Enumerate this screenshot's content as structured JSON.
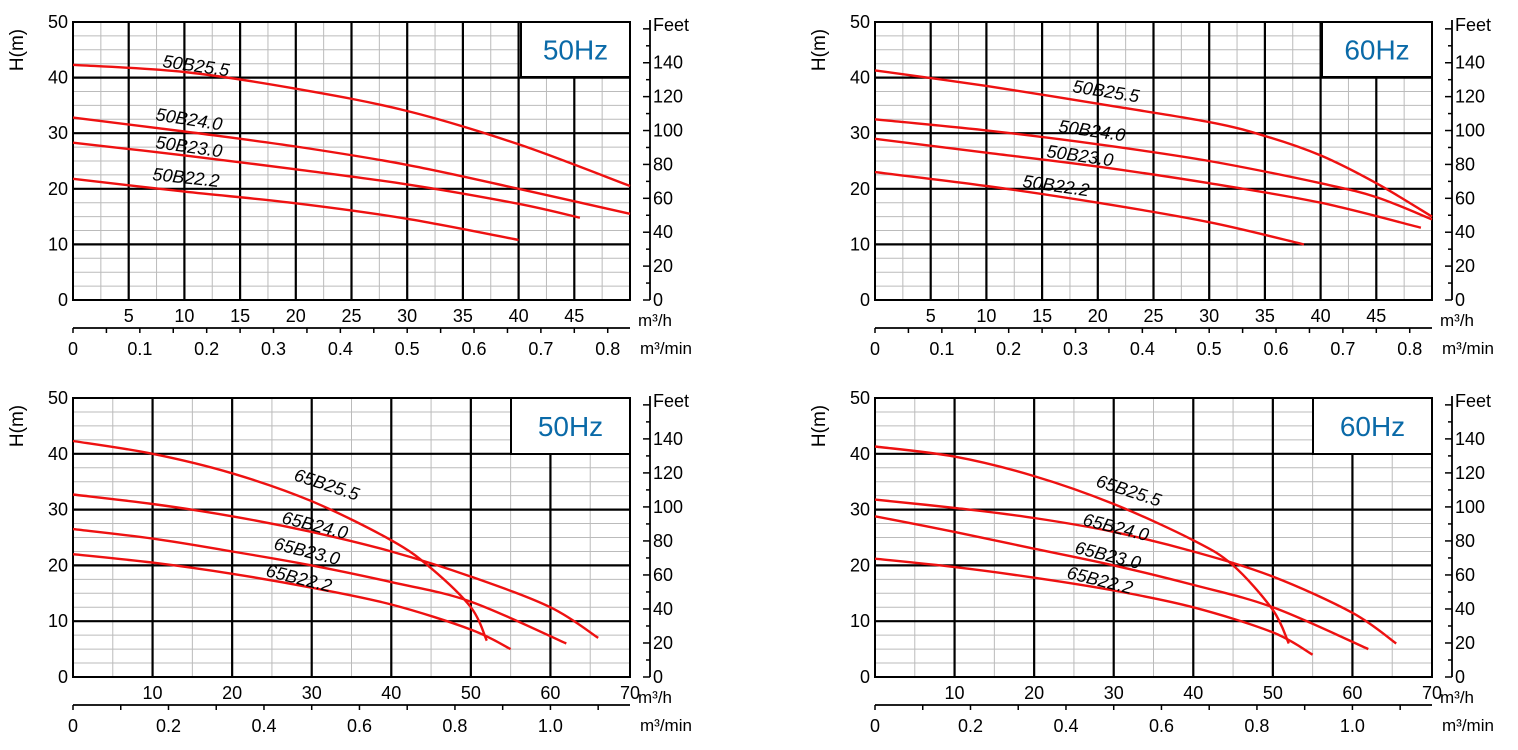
{
  "chart_data": [
    {
      "type": "line",
      "frequency": "50Hz",
      "ylabel": "H(m)",
      "ylabel_right": "Feet",
      "xlabel": "m³/h",
      "xlabel2": "m³/min",
      "x_ticks": [
        5,
        10,
        15,
        20,
        25,
        30,
        35,
        40,
        45
      ],
      "x2_ticks": [
        "0",
        "0.1",
        "0.2",
        "0.3",
        "0.4",
        "0.5",
        "0.6",
        "0.7",
        "0.8"
      ],
      "y_ticks": [
        0,
        10,
        20,
        30,
        40,
        50
      ],
      "yr_ticks": [
        "0",
        "20",
        "40",
        "60",
        "80",
        "100",
        "120",
        "140"
      ],
      "xlim": [
        0,
        50
      ],
      "ylim": [
        0,
        50
      ],
      "series": [
        {
          "name": "50B25.5",
          "x": [
            0,
            10,
            20,
            30,
            40,
            50
          ],
          "y": [
            42.3,
            41.0,
            38.0,
            34.0,
            28.0,
            20.5
          ]
        },
        {
          "name": "50B24.0",
          "x": [
            0,
            10,
            20,
            30,
            40,
            50
          ],
          "y": [
            32.8,
            30.3,
            27.6,
            24.3,
            20.0,
            15.5
          ]
        },
        {
          "name": "50B23.0",
          "x": [
            0,
            10,
            20,
            30,
            40,
            45.5
          ],
          "y": [
            28.3,
            26.0,
            23.5,
            20.8,
            17.3,
            14.8
          ]
        },
        {
          "name": "50B22.2",
          "x": [
            0,
            10,
            20,
            30,
            40
          ],
          "y": [
            21.8,
            19.5,
            17.4,
            14.6,
            10.8
          ]
        }
      ]
    },
    {
      "type": "line",
      "frequency": "60Hz",
      "ylabel": "H(m)",
      "ylabel_right": "Feet",
      "xlabel": "m³/h",
      "xlabel2": "m³/min",
      "x_ticks": [
        5,
        10,
        15,
        20,
        25,
        30,
        35,
        40,
        45
      ],
      "x2_ticks": [
        "0",
        "0.1",
        "0.2",
        "0.3",
        "0.4",
        "0.5",
        "0.6",
        "0.7",
        "0.8"
      ],
      "y_ticks": [
        0,
        10,
        20,
        30,
        40,
        50
      ],
      "yr_ticks": [
        "0",
        "20",
        "40",
        "60",
        "80",
        "100",
        "120",
        "140"
      ],
      "xlim": [
        0,
        50
      ],
      "ylim": [
        0,
        50
      ],
      "series": [
        {
          "name": "50B25.5",
          "x": [
            0,
            10,
            20,
            30,
            35,
            40,
            45,
            50
          ],
          "y": [
            41.3,
            38.5,
            35.3,
            32.0,
            29.5,
            26.0,
            21.0,
            15.0
          ]
        },
        {
          "name": "50B24.0",
          "x": [
            0,
            10,
            20,
            30,
            40,
            45,
            50
          ],
          "y": [
            32.5,
            30.5,
            28.0,
            25.0,
            21.0,
            18.5,
            14.5
          ]
        },
        {
          "name": "50B23.0",
          "x": [
            0,
            10,
            20,
            30,
            40,
            49
          ],
          "y": [
            29.0,
            26.5,
            24.0,
            21.0,
            17.5,
            13.0
          ]
        },
        {
          "name": "50B22.2",
          "x": [
            0,
            10,
            20,
            30,
            38.5
          ],
          "y": [
            23.0,
            20.5,
            17.5,
            14.0,
            10.0
          ]
        }
      ]
    },
    {
      "type": "line",
      "frequency": "50Hz",
      "ylabel": "H(m)",
      "ylabel_right": "Feet",
      "xlabel": "m³/h",
      "xlabel2": "m³/min",
      "x_ticks": [
        10,
        20,
        30,
        40,
        50,
        60,
        70
      ],
      "x2_ticks": [
        "0",
        "0.2",
        "0.4",
        "0.6",
        "0.8",
        "1.0"
      ],
      "y_ticks": [
        0,
        10,
        20,
        30,
        40,
        50
      ],
      "yr_ticks": [
        "0",
        "20",
        "40",
        "60",
        "80",
        "100",
        "120",
        "140"
      ],
      "xlim": [
        0,
        70
      ],
      "ylim": [
        0,
        50
      ],
      "series": [
        {
          "name": "65B25.5",
          "x": [
            0,
            10,
            20,
            30,
            40,
            45,
            50,
            52
          ],
          "y": [
            42.3,
            40.0,
            36.5,
            31.5,
            24.5,
            19.5,
            12.5,
            6.5
          ]
        },
        {
          "name": "65B24.0",
          "x": [
            0,
            10,
            20,
            30,
            40,
            50,
            60,
            66
          ],
          "y": [
            32.7,
            31.0,
            28.8,
            26.0,
            22.5,
            18.0,
            12.5,
            7.0
          ]
        },
        {
          "name": "65B23.0",
          "x": [
            0,
            10,
            20,
            30,
            40,
            50,
            62
          ],
          "y": [
            26.5,
            24.8,
            22.5,
            20.0,
            17.0,
            13.5,
            6.0
          ]
        },
        {
          "name": "65B22.2",
          "x": [
            0,
            10,
            20,
            30,
            40,
            50,
            55
          ],
          "y": [
            22.0,
            20.5,
            18.5,
            16.0,
            13.0,
            8.5,
            5.0
          ]
        }
      ]
    },
    {
      "type": "line",
      "frequency": "60Hz",
      "ylabel": "H(m)",
      "ylabel_right": "Feet",
      "xlabel": "m³/h",
      "xlabel2": "m³/min",
      "x_ticks": [
        10,
        20,
        30,
        40,
        50,
        60,
        70
      ],
      "x2_ticks": [
        "0",
        "0.2",
        "0.4",
        "0.6",
        "0.8",
        "1.0"
      ],
      "y_ticks": [
        0,
        10,
        20,
        30,
        40,
        50
      ],
      "yr_ticks": [
        "0",
        "20",
        "40",
        "60",
        "80",
        "100",
        "120",
        "140"
      ],
      "xlim": [
        0,
        70
      ],
      "ylim": [
        0,
        50
      ],
      "series": [
        {
          "name": "65B25.5",
          "x": [
            0,
            10,
            20,
            30,
            40,
            45,
            50,
            52
          ],
          "y": [
            41.3,
            39.5,
            36.0,
            31.0,
            24.5,
            20.0,
            12.0,
            6.0
          ]
        },
        {
          "name": "65B24.0",
          "x": [
            0,
            10,
            20,
            30,
            40,
            50,
            60,
            65.5
          ],
          "y": [
            31.8,
            30.3,
            28.5,
            26.0,
            22.5,
            18.0,
            11.5,
            6.0
          ]
        },
        {
          "name": "65B23.0",
          "x": [
            0,
            10,
            20,
            30,
            40,
            50,
            62
          ],
          "y": [
            28.8,
            26.0,
            23.0,
            20.0,
            16.5,
            12.5,
            5.0
          ]
        },
        {
          "name": "65B22.2",
          "x": [
            0,
            10,
            20,
            30,
            40,
            50,
            55
          ],
          "y": [
            21.2,
            19.7,
            17.8,
            15.5,
            12.5,
            8.0,
            4.0
          ]
        }
      ]
    }
  ],
  "colors": {
    "curve": "#ee1111",
    "frequency_text": "#0a6aa8",
    "major_grid": "#000000",
    "minor_grid": "#bbbbbb"
  }
}
